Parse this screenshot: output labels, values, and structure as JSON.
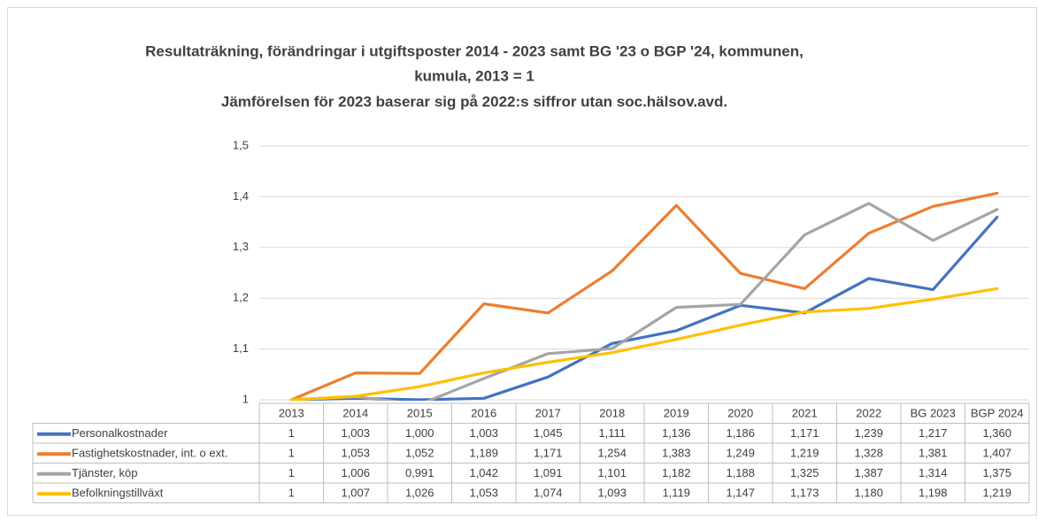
{
  "chart_data": {
    "type": "line",
    "title": [
      "Resultaträkning, förändringar i utgiftsposter 2014 - 2023 samt BG '23 o BGP '24, kommunen,",
      "kumula, 2013 = 1",
      "Jämförelsen för 2023 baserar sig på 2022:s siffror utan soc.hälsov.avd."
    ],
    "categories": [
      "2013",
      "2014",
      "2015",
      "2016",
      "2017",
      "2018",
      "2019",
      "2020",
      "2021",
      "2022",
      "BG 2023",
      "BGP 2024"
    ],
    "ylim": [
      1,
      1.5
    ],
    "yticks": [
      1,
      {
        "value": 1.1,
        "label": "1,1"
      },
      {
        "value": 1.2,
        "label": "1,2"
      },
      {
        "value": 1.3,
        "label": "1,3"
      },
      {
        "value": 1.4,
        "label": "1,4"
      },
      {
        "value": 1.5,
        "label": "1,5"
      }
    ],
    "grid": true,
    "series": [
      {
        "name": "Personalkostnader",
        "color": "#4472c4",
        "values": [
          1,
          1.003,
          1.0,
          1.003,
          1.045,
          1.111,
          1.136,
          1.186,
          1.171,
          1.239,
          1.217,
          1.36
        ],
        "value_labels": [
          "1",
          "1,003",
          "1,000",
          "1,003",
          "1,045",
          "1,111",
          "1,136",
          "1,186",
          "1,171",
          "1,239",
          "1,217",
          "1,360"
        ]
      },
      {
        "name": "Fastighetskostnader, int. o ext.",
        "color": "#ed7d31",
        "values": [
          1,
          1.053,
          1.052,
          1.189,
          1.171,
          1.254,
          1.383,
          1.249,
          1.219,
          1.328,
          1.381,
          1.407
        ],
        "value_labels": [
          "1",
          "1,053",
          "1,052",
          "1,189",
          "1,171",
          "1,254",
          "1,383",
          "1,249",
          "1,219",
          "1,328",
          "1,381",
          "1,407"
        ]
      },
      {
        "name": "Tjänster, köp",
        "color": "#a5a5a5",
        "values": [
          1,
          1.006,
          0.991,
          1.042,
          1.091,
          1.101,
          1.182,
          1.188,
          1.325,
          1.387,
          1.314,
          1.375
        ],
        "value_labels": [
          "1",
          "1,006",
          "0,991",
          "1,042",
          "1,091",
          "1,101",
          "1,182",
          "1,188",
          "1,325",
          "1,387",
          "1,314",
          "1,375"
        ]
      },
      {
        "name": "Befolkningstillväxt",
        "color": "#ffc000",
        "values": [
          1,
          1.007,
          1.026,
          1.053,
          1.074,
          1.093,
          1.119,
          1.147,
          1.173,
          1.18,
          1.198,
          1.219
        ],
        "value_labels": [
          "1",
          "1,007",
          "1,026",
          "1,053",
          "1,074",
          "1,093",
          "1,119",
          "1,147",
          "1,173",
          "1,180",
          "1,198",
          "1,219"
        ]
      }
    ]
  }
}
